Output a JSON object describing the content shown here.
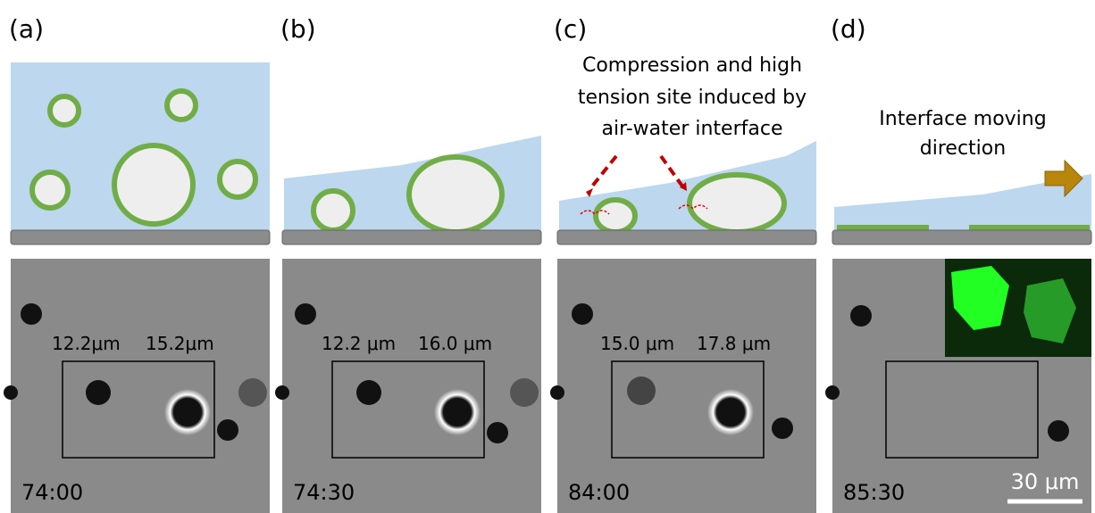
{
  "panels": [
    {
      "label": "(a)",
      "time": "74:00",
      "measurements": [
        "12.2μm",
        "15.2μm"
      ]
    },
    {
      "label": "(b)",
      "time": "74:30",
      "measurements": [
        "12.2 μm",
        "16.0 μm"
      ]
    },
    {
      "label": "(c)",
      "time": "84:00",
      "measurements": [
        "15.0 μm",
        "17.8 μm"
      ],
      "annotation": [
        "Compression and high",
        "tension site induced by",
        "air-water interface"
      ]
    },
    {
      "label": "(d)",
      "time": "85:30",
      "annotation": [
        "Interface moving",
        "direction"
      ],
      "scale_bar": "30 μm"
    }
  ]
}
